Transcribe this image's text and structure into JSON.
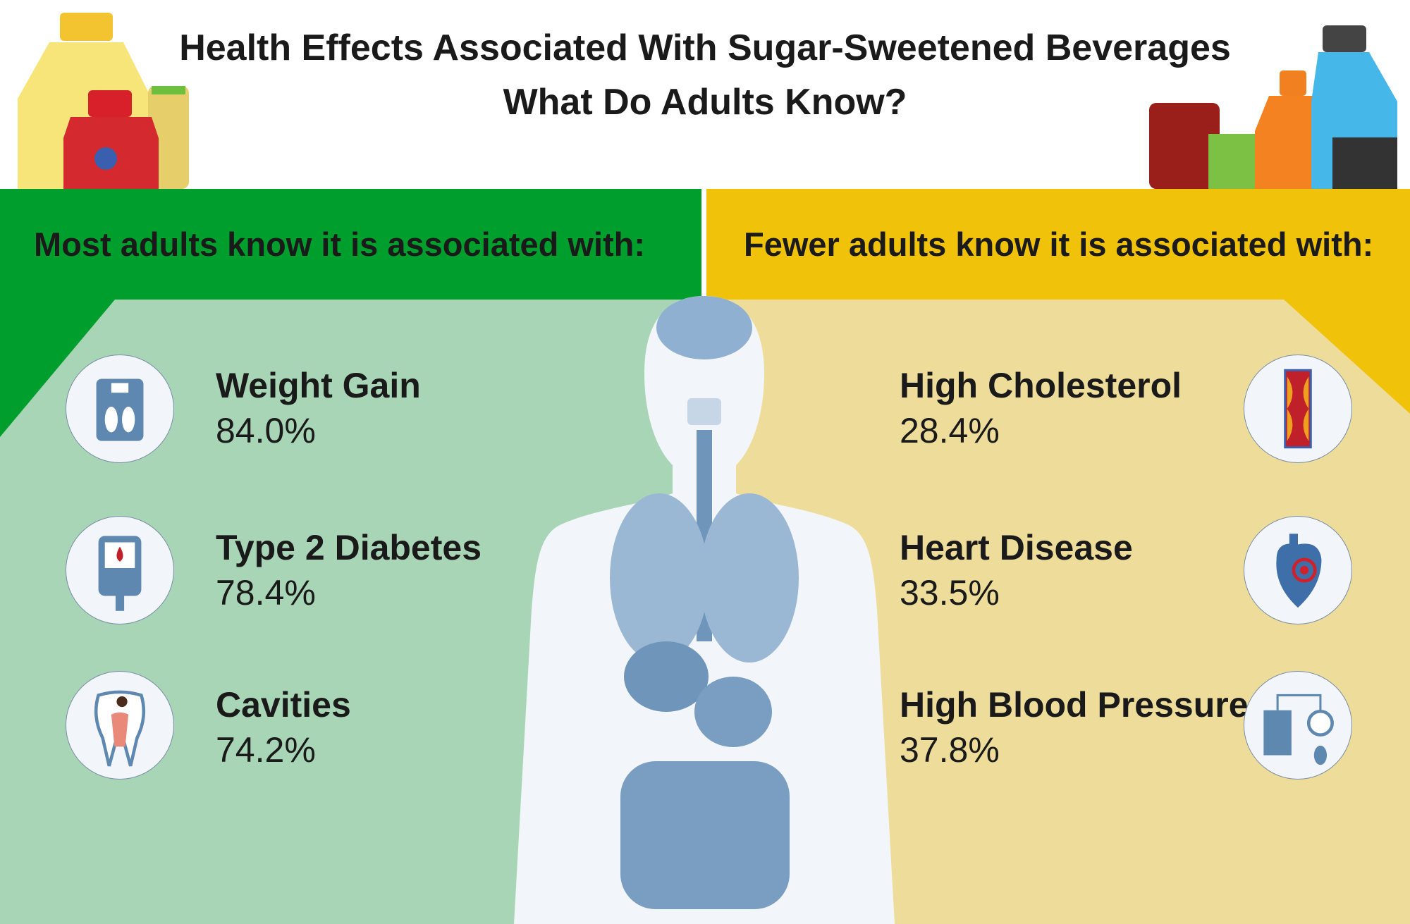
{
  "title": {
    "line1": "Health Effects Associated With Sugar-Sweetened Beverages",
    "line2": "What Do Adults Know?"
  },
  "colors": {
    "green_dark": "#009f2d",
    "green_light": "#a8d5b5",
    "yellow_dark": "#f0c20a",
    "yellow_light": "#eedd9a",
    "icon_blue": "#5f88b0"
  },
  "left": {
    "heading": "Most adults know it is associated with:",
    "items": [
      {
        "label": "Weight Gain",
        "percent": "84.0%",
        "icon": "bathroom-scale-icon"
      },
      {
        "label": "Type 2 Diabetes",
        "percent": "78.4%",
        "icon": "glucose-meter-icon"
      },
      {
        "label": "Cavities",
        "percent": "74.2%",
        "icon": "tooth-cavity-icon"
      }
    ]
  },
  "right": {
    "heading": "Fewer adults know it is associated with:",
    "items": [
      {
        "label": "High Cholesterol",
        "percent": "28.4%",
        "icon": "artery-plaque-icon"
      },
      {
        "label": "Heart Disease",
        "percent": "33.5%",
        "icon": "heart-icon"
      },
      {
        "label": "High Blood Pressure",
        "percent": "37.8%",
        "icon": "blood-pressure-gauge-icon"
      }
    ]
  }
}
